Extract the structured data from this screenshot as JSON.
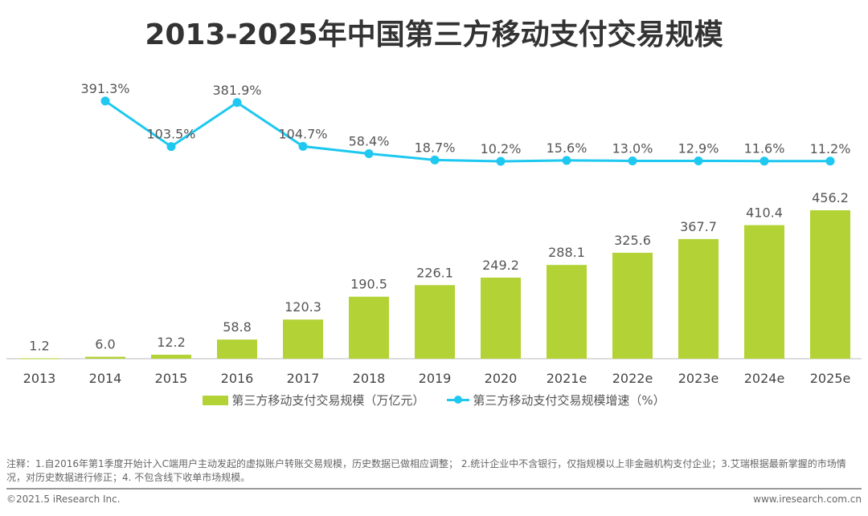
{
  "title": "2013-2025年中国第三方移动支付交易规模",
  "chart_data": {
    "type": "bar+line",
    "title": "2013-2025年中国第三方移动支付交易规模",
    "categories": [
      "2013",
      "2014",
      "2015",
      "2016",
      "2017",
      "2018",
      "2019",
      "2020",
      "2021e",
      "2022e",
      "2023e",
      "2024e",
      "2025e"
    ],
    "series": [
      {
        "name": "第三方移动支付交易规模（万亿元）",
        "type": "bar",
        "values": [
          1.2,
          6.0,
          12.2,
          58.8,
          120.3,
          190.5,
          226.1,
          249.2,
          288.1,
          325.6,
          367.7,
          410.4,
          456.2
        ],
        "labels": [
          "1.2",
          "6.0",
          "12.2",
          "58.8",
          "120.3",
          "190.5",
          "226.1",
          "249.2",
          "288.1",
          "325.6",
          "367.7",
          "410.4",
          "456.2"
        ]
      },
      {
        "name": "第三方移动支付交易规模增速（%）",
        "type": "line",
        "values": [
          null,
          391.3,
          103.5,
          381.9,
          104.7,
          58.4,
          18.7,
          10.2,
          15.6,
          13.0,
          12.9,
          11.6,
          11.2
        ],
        "labels": [
          "",
          "391.3%",
          "103.5%",
          "381.9%",
          "104.7%",
          "58.4%",
          "18.7%",
          "10.2%",
          "15.6%",
          "13.0%",
          "12.9%",
          "11.6%",
          "11.2%"
        ]
      }
    ],
    "legend_placement": "bottom",
    "grid": false,
    "colors": {
      "bar": "#b2d235",
      "line": "#1ec8f0"
    }
  },
  "footer": {
    "note": "注释：1.自2016年第1季度开始计入C端用户主动发起的虚拟账户转账交易规模，历史数据已做相应调整； 2.统计企业中不含银行，仅指规模以上非金融机构支付企业；3.艾瑞根据最新掌握的市场情况，对历史数据进行修正；4. 不包含线下收单市场规模。",
    "copyright": "©2021.5 iResearch Inc.",
    "website": "www.iresearch.com.cn"
  }
}
